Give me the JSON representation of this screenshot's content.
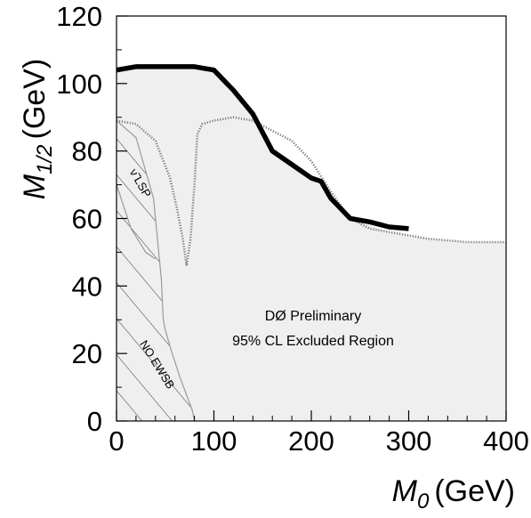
{
  "chart_data": {
    "type": "line",
    "title": "",
    "xlabel": {
      "symbol": "M",
      "subscript": "0",
      "unit": "(GeV)"
    },
    "ylabel": {
      "symbol": "M",
      "subscript": "1/2",
      "unit": "(GeV)"
    },
    "xlim": [
      0,
      400
    ],
    "ylim": [
      0,
      120
    ],
    "xticks": [
      0,
      100,
      200,
      300,
      400
    ],
    "yticks": [
      0,
      20,
      40,
      60,
      80,
      100,
      120
    ],
    "grid": false,
    "legend": "none",
    "annotations": {
      "experiment": "DØ Preliminary",
      "region": "95% CL Excluded Region",
      "lsp": "ν̃ LSP",
      "ewsb": "NO EWSB"
    },
    "colors": {
      "excluded_fill": "#efefef",
      "d0_limit": "#000000",
      "dotted_limit": "#777777",
      "theory_boundary": "#9a9a9a",
      "hatch": "#333333"
    },
    "series": [
      {
        "style": "thick-solid",
        "x": [
          0,
          20,
          40,
          60,
          80,
          100,
          120,
          140,
          160,
          180,
          190,
          200,
          210,
          220,
          240,
          260,
          280,
          300
        ],
        "y": [
          104,
          105,
          105,
          105,
          105,
          104,
          98,
          91,
          80,
          76,
          74,
          72,
          71,
          66,
          60,
          59,
          57.5,
          57
        ]
      },
      {
        "style": "dotted",
        "x": [
          0,
          20,
          40,
          55,
          62,
          68,
          72,
          76,
          80,
          83,
          88,
          100,
          120,
          140,
          160,
          180,
          200,
          220,
          240,
          260,
          280,
          300,
          320,
          340,
          360,
          380,
          400
        ],
        "y": [
          89,
          88,
          83,
          72,
          63,
          54,
          46,
          54,
          70,
          85,
          88,
          89,
          90,
          89,
          86,
          83,
          77,
          68,
          60,
          57,
          56,
          55,
          54,
          53.5,
          53,
          53,
          53
        ]
      },
      {
        "style": "excluded-region-boundary",
        "x": [
          0,
          20,
          40,
          60,
          80,
          100,
          120,
          140,
          160,
          180,
          200,
          220,
          240,
          260,
          280,
          300,
          320,
          340,
          360,
          380,
          400
        ],
        "y": [
          104,
          105,
          105,
          105,
          105,
          104,
          98,
          91,
          80,
          76,
          72,
          67,
          60,
          58,
          56,
          55,
          54,
          53.5,
          53,
          53,
          53
        ]
      },
      {
        "style": "no-ewsb-boundary",
        "x": [
          0,
          20,
          38,
          46,
          48,
          50,
          55,
          65,
          78,
          80
        ],
        "y": [
          89,
          84,
          66,
          42,
          30,
          27,
          22,
          13,
          3,
          0
        ]
      },
      {
        "style": "lsp-boundary",
        "x": [
          0,
          15,
          30,
          40
        ],
        "y": [
          70,
          57,
          50,
          48
        ]
      }
    ]
  }
}
